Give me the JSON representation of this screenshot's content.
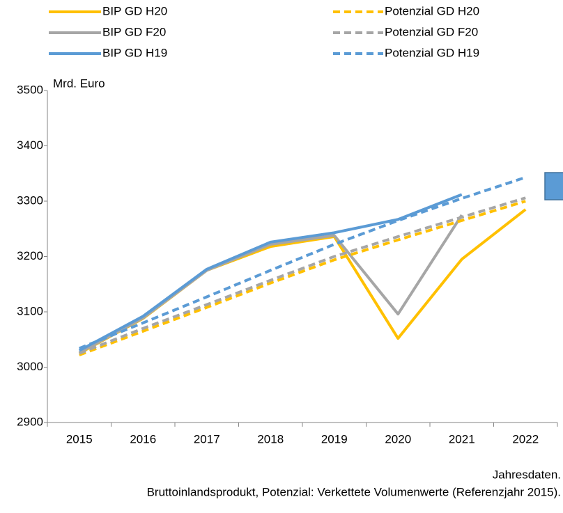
{
  "chart_data": {
    "type": "line",
    "y_label": "Mrd. Euro",
    "categories": [
      "2015",
      "2016",
      "2017",
      "2018",
      "2019",
      "2020",
      "2021",
      "2022"
    ],
    "series": [
      {
        "name": "BIP GD H20",
        "color": "#ffc000",
        "dashed": false,
        "values": [
          3025,
          3088,
          3175,
          3218,
          3236,
          3052,
          3195,
          3285
        ]
      },
      {
        "name": "BIP GD F20",
        "color": "#a6a6a6",
        "dashed": false,
        "values": [
          3026,
          3089,
          3175,
          3222,
          3238,
          3096,
          3275,
          null
        ]
      },
      {
        "name": "BIP GD H19",
        "color": "#5b9bd5",
        "dashed": false,
        "values": [
          3030,
          3092,
          3177,
          3226,
          3243,
          3267,
          3312,
          null
        ]
      },
      {
        "name": "Potenzial GD H20",
        "color": "#ffc000",
        "dashed": true,
        "values": [
          3022,
          3065,
          3108,
          3152,
          3194,
          3230,
          3265,
          3300
        ]
      },
      {
        "name": "Potenzial GD F20",
        "color": "#a6a6a6",
        "dashed": true,
        "values": [
          3025,
          3070,
          3113,
          3157,
          3200,
          3236,
          3271,
          3306
        ]
      },
      {
        "name": "Potenzial GD H19",
        "color": "#5b9bd5",
        "dashed": true,
        "values": [
          3034,
          3080,
          3127,
          3175,
          3222,
          3265,
          3305,
          3343
        ]
      }
    ],
    "ylim": [
      2900,
      3500
    ],
    "yticks": [
      2900,
      3000,
      3100,
      3200,
      3300,
      3400,
      3500
    ],
    "grid": false,
    "notes": [
      "Jahresdaten.",
      "Bruttoinlandsprodukt, Potenzial: Verkettete Volumenwerte (Referenzjahr 2015)."
    ]
  }
}
